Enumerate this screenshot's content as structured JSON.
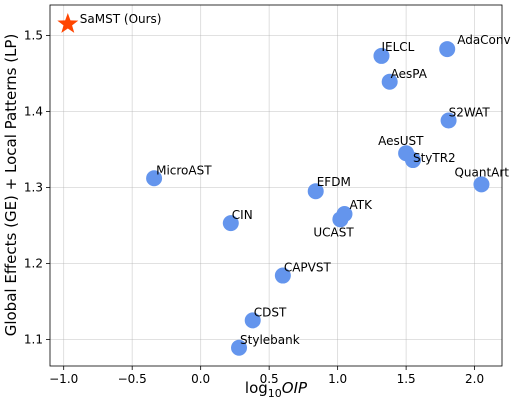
{
  "chart_data": {
    "type": "scatter",
    "xlabel_prefix": "log",
    "xlabel_sub": "10",
    "xlabel_var": "OIP",
    "ylabel": "Global Effects (GE) + Local Patterns (LP)",
    "xlim": [
      -1.1,
      2.2
    ],
    "ylim": [
      1.065,
      1.54
    ],
    "xticks": [
      -1.0,
      -0.5,
      0.0,
      0.5,
      1.0,
      1.5,
      2.0
    ],
    "xtick_labels": [
      "−1.0",
      "−0.5",
      "0.0",
      "0.5",
      "1.0",
      "1.5",
      "2.0"
    ],
    "yticks": [
      1.1,
      1.2,
      1.3,
      1.4,
      1.5
    ],
    "ytick_labels": [
      "1.1",
      "1.2",
      "1.3",
      "1.4",
      "1.5"
    ],
    "grid": true,
    "colors": {
      "points": "#6495ed",
      "highlight": "#ff4500"
    },
    "highlight_point": {
      "label": "SaMST (Ours)",
      "x": -0.97,
      "y": 1.515,
      "marker": "star"
    },
    "points": [
      {
        "label": "AdaConv",
        "x": 1.8,
        "y": 1.482
      },
      {
        "label": "IELCL",
        "x": 1.32,
        "y": 1.473
      },
      {
        "label": "AesPA",
        "x": 1.38,
        "y": 1.439
      },
      {
        "label": "S2WAT",
        "x": 1.81,
        "y": 1.388
      },
      {
        "label": "AesUST",
        "x": 1.5,
        "y": 1.345
      },
      {
        "label": "StyTR2",
        "x": 1.55,
        "y": 1.336
      },
      {
        "label": "QuantArt",
        "x": 2.05,
        "y": 1.304
      },
      {
        "label": "MicroAST",
        "x": -0.34,
        "y": 1.312
      },
      {
        "label": "EFDM",
        "x": 0.84,
        "y": 1.295
      },
      {
        "label": "ATK",
        "x": 1.05,
        "y": 1.265
      },
      {
        "label": "UCAST",
        "x": 1.02,
        "y": 1.258
      },
      {
        "label": "CIN",
        "x": 0.22,
        "y": 1.253
      },
      {
        "label": "CAPVST",
        "x": 0.6,
        "y": 1.184
      },
      {
        "label": "CDST",
        "x": 0.38,
        "y": 1.125
      },
      {
        "label": "Stylebank",
        "x": 0.28,
        "y": 1.089
      }
    ]
  }
}
